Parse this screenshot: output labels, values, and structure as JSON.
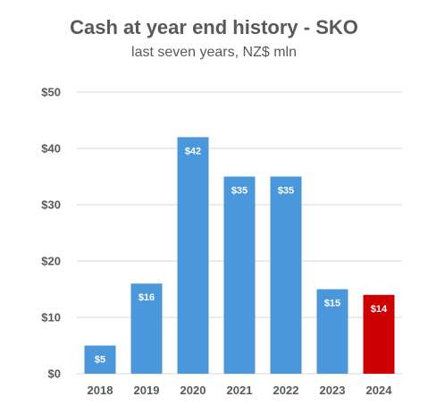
{
  "chart_data": {
    "type": "bar",
    "title": "Cash at year end history - SKO",
    "subtitle": "last seven years, NZ$ mln",
    "xlabel": "",
    "ylabel": "",
    "categories": [
      "2018",
      "2019",
      "2020",
      "2021",
      "2022",
      "2023",
      "2024"
    ],
    "values": [
      5,
      16,
      42,
      35,
      35,
      15,
      14
    ],
    "data_labels": [
      "$5",
      "$16",
      "$42",
      "$35",
      "$35",
      "$15",
      "$14"
    ],
    "ylim": [
      0,
      50
    ],
    "yticks": [
      0,
      10,
      20,
      30,
      40,
      50
    ],
    "ytick_labels": [
      "$0",
      "$10",
      "$20",
      "$30",
      "$40",
      "$50"
    ],
    "grid": true,
    "legend": "none",
    "colors": {
      "bar": "#4A97DB",
      "highlight": "#CC0000",
      "grid": "#D9D9D9",
      "text": "#595959",
      "data_label": "#FFFFFF"
    },
    "highlight_category": "2024"
  }
}
